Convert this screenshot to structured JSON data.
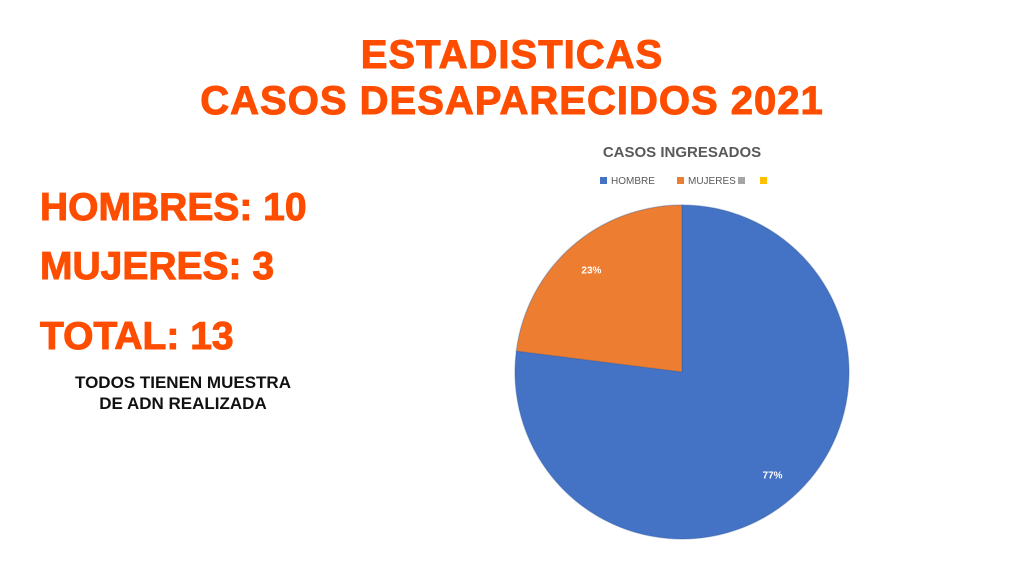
{
  "slide": {
    "title_line_1": "ESTADISTICAS",
    "title_line_2": "CASOS DESAPARECIDOS 2021",
    "stats": {
      "hombres": "HOMBRES: 10",
      "mujeres": "MUJERES: 3",
      "total": "TOTAL: 13"
    },
    "note_line_1": "TODOS TIENEN MUESTRA",
    "note_line_2": "DE ADN REALIZADA"
  },
  "colors": {
    "accent": "#ff4d00",
    "text_dark": "#111111",
    "chart_title": "#595959",
    "legend_text": "#595959"
  },
  "chart_data": {
    "type": "pie",
    "title": "CASOS INGRESADOS",
    "legend_position": "top",
    "legend": [
      {
        "label": "HOMBRE",
        "color": "#4472c4"
      },
      {
        "label": "MUJERES",
        "color": "#ed7d31"
      },
      {
        "label": "",
        "color": "#a5a5a5"
      },
      {
        "label": "",
        "color": "#ffc000"
      }
    ],
    "slices": [
      {
        "name": "HOMBRE",
        "value": 77,
        "label": "77%",
        "color": "#4472c4"
      },
      {
        "name": "MUJERES",
        "value": 23,
        "label": "23%",
        "color": "#ed7d31"
      }
    ]
  }
}
